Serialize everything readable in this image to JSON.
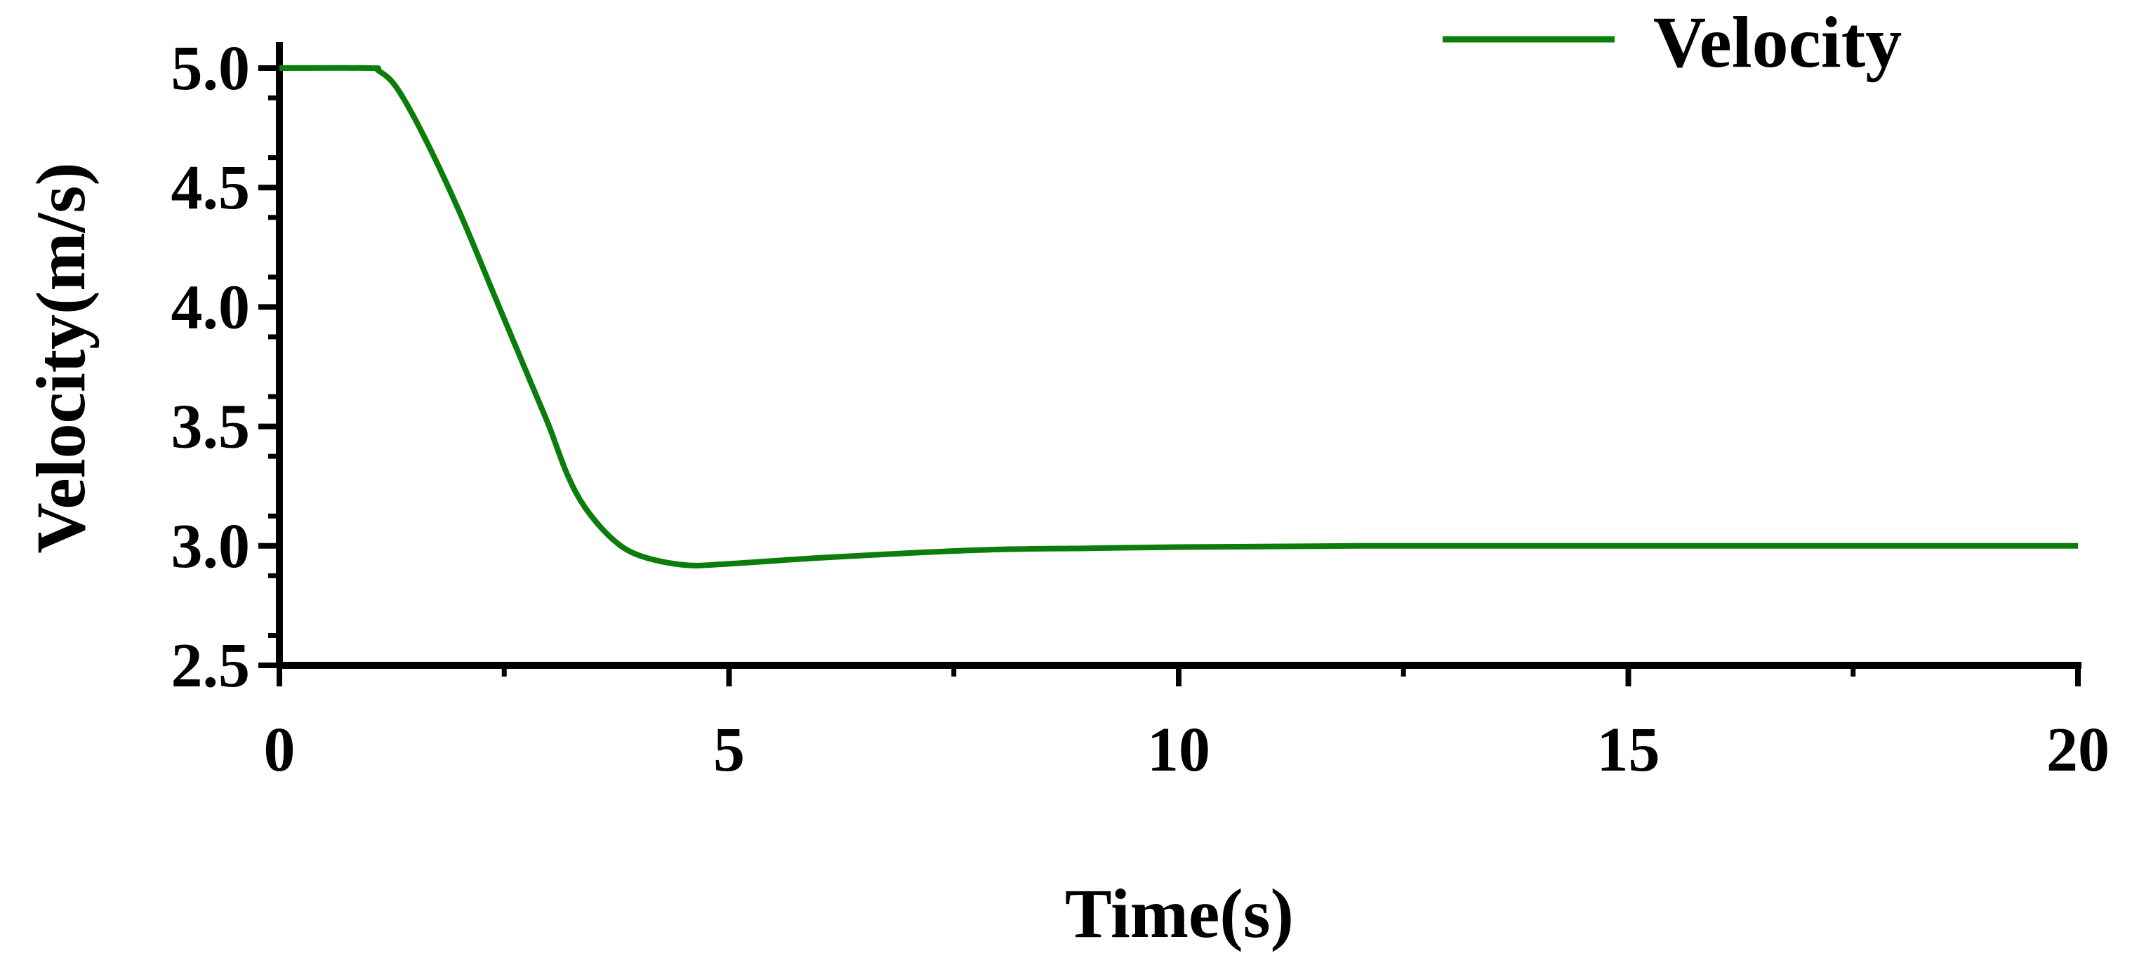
{
  "chart_data": {
    "type": "line",
    "xlabel": "Time(s)",
    "ylabel": "Velocity(m/s)",
    "xlim": [
      0,
      20
    ],
    "ylim": [
      2.5,
      5.0
    ],
    "x_ticks": [
      "0",
      "5",
      "10",
      "15",
      "20"
    ],
    "y_ticks": [
      "2.5",
      "3.0",
      "3.5",
      "4.0",
      "4.5",
      "5.0"
    ],
    "grid": false,
    "legend_position": "top-right",
    "series": [
      {
        "name": "Velocity",
        "color": "#0a7d0a",
        "x": [
          0,
          1.0,
          1.1,
          1.3,
          1.6,
          2.0,
          2.4,
          2.8,
          3.0,
          3.2,
          3.4,
          3.7,
          4.0,
          4.5,
          5.0,
          6.0,
          7.0,
          8.0,
          9.0,
          10.0,
          12.0,
          15.0,
          20.0
        ],
        "y": [
          5.0,
          5.0,
          4.99,
          4.92,
          4.72,
          4.4,
          4.04,
          3.68,
          3.5,
          3.3,
          3.16,
          3.03,
          2.96,
          2.92,
          2.925,
          2.95,
          2.97,
          2.985,
          2.99,
          2.995,
          3.0,
          3.0,
          3.0
        ]
      }
    ]
  }
}
